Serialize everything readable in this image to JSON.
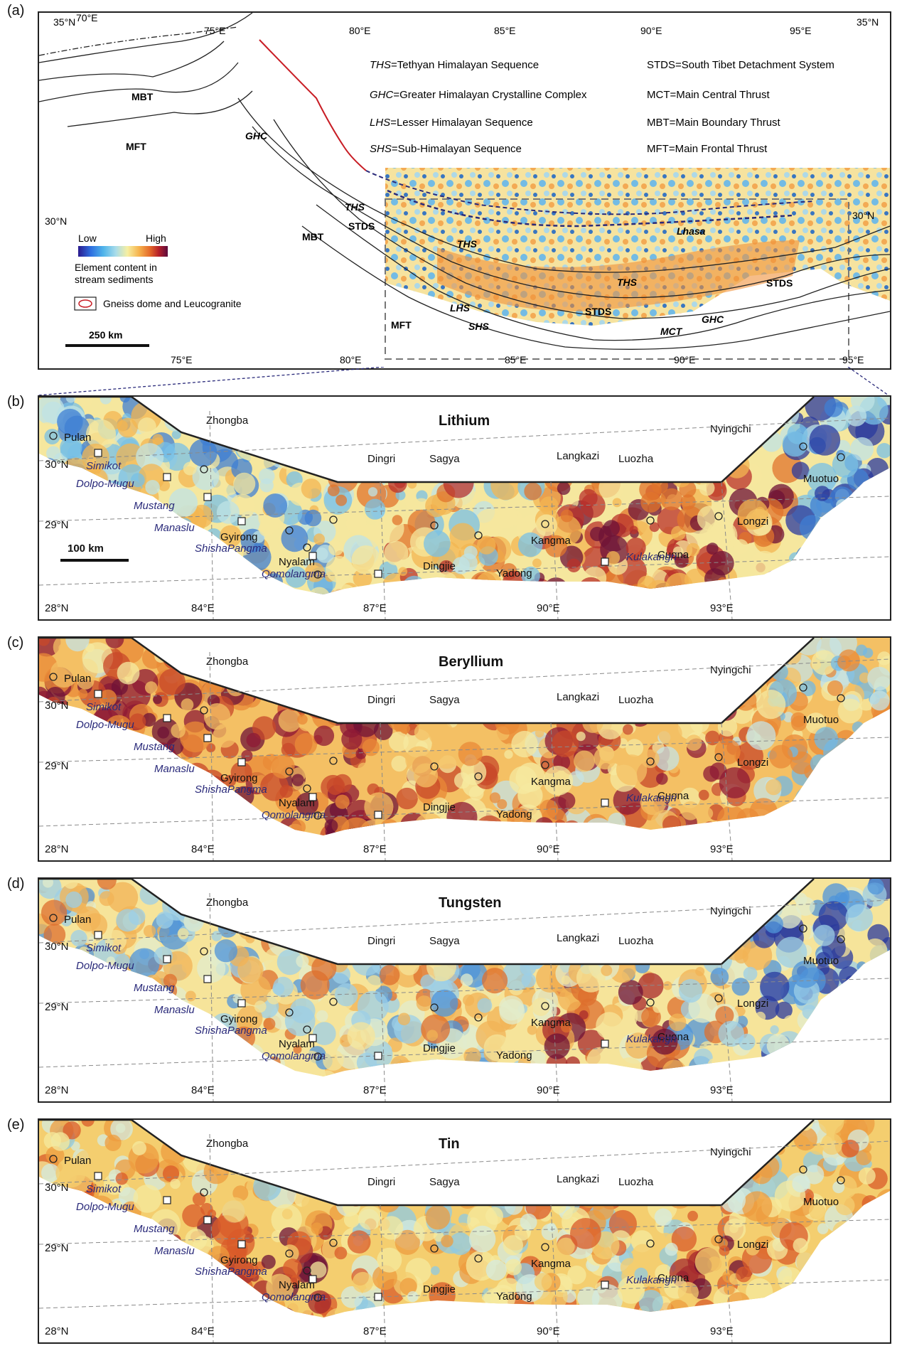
{
  "panels": {
    "a": {
      "label": "(a)",
      "corner_labels": {
        "left": "35°N",
        "right": "35°N",
        "lon70": "70°E"
      },
      "top_lon": [
        "75°E",
        "80°E",
        "85°E",
        "90°E",
        "95°E"
      ],
      "bottom_lon": [
        "75°E",
        "80°E",
        "85°E",
        "90°E",
        "95°E"
      ],
      "lat_labels": {
        "lat30_left": "30°N",
        "lat30_right": "30°N"
      },
      "abbreviations": [
        {
          "abbr": "THS",
          "def": "=Tethyan Himalayan Sequence"
        },
        {
          "abbr": "GHC",
          "def": "=Greater Himalayan Crystalline Complex"
        },
        {
          "abbr": "LHS",
          "def": "=Lesser Himalayan Sequence"
        },
        {
          "abbr": "SHS",
          "def": "=Sub-Himalayan Sequence"
        }
      ],
      "abbreviations_right": [
        "STDS=South Tibet Detachment System",
        "MCT=Main Central Thrust",
        "MBT=Main Boundary Thrust",
        "MFT=Main Frontal Thrust"
      ],
      "legend": {
        "low": "Low",
        "high": "High",
        "caption_line1": "Element content in",
        "caption_line2": "stream sediments",
        "gneiss": "Gneiss dome and Leucogranite",
        "scale": "250 km",
        "ramp_colors": [
          "#2a1a8e",
          "#2e6fe0",
          "#4fb4ea",
          "#a8dcea",
          "#f7efa2",
          "#f6b34d",
          "#e46a2a",
          "#b6202a",
          "#5c0b3c"
        ]
      },
      "map_labels": {
        "mbt1": "MBT",
        "mft1": "MFT",
        "ghc1": "GHC",
        "ths1": "THS",
        "stds1": "STDS",
        "mbt2": "MBT",
        "ths2": "THS",
        "lhasa": "Lhasa",
        "ths3": "THS",
        "stds2": "STDS",
        "stds3": "STDS",
        "lhs": "LHS",
        "mft2": "MFT",
        "shs": "SHS",
        "mct": "MCT",
        "ghc2": "GHC"
      }
    },
    "maps": [
      {
        "id": "b",
        "label": "(b)",
        "title": "Lithium",
        "scale": "100 km"
      },
      {
        "id": "c",
        "label": "(c)",
        "title": "Beryllium"
      },
      {
        "id": "d",
        "label": "(d)",
        "title": "Tungsten"
      },
      {
        "id": "e",
        "label": "(e)",
        "title": "Tin"
      }
    ],
    "towns": [
      "Zhongba",
      "Pulan",
      "Dingri",
      "Sagya",
      "Langkazi",
      "Luozha",
      "Nyingchi",
      "Muotuo",
      "Longzi",
      "Kangma",
      "Cuona",
      "Yadong",
      "Dingjie",
      "Nyalam",
      "Gyirong"
    ],
    "domes": [
      "Simikot",
      "Dolpo-Mugu",
      "Mustang",
      "Manaslu",
      "ShishaPangma",
      "Qomolangma",
      "Kulakangri"
    ],
    "grid_labels": {
      "lat30": "30°N",
      "lat29": "29°N",
      "lat28": "28°N",
      "lon84": "84°E",
      "lon87": "87°E",
      "lon90": "90°E",
      "lon93": "93°E"
    }
  }
}
